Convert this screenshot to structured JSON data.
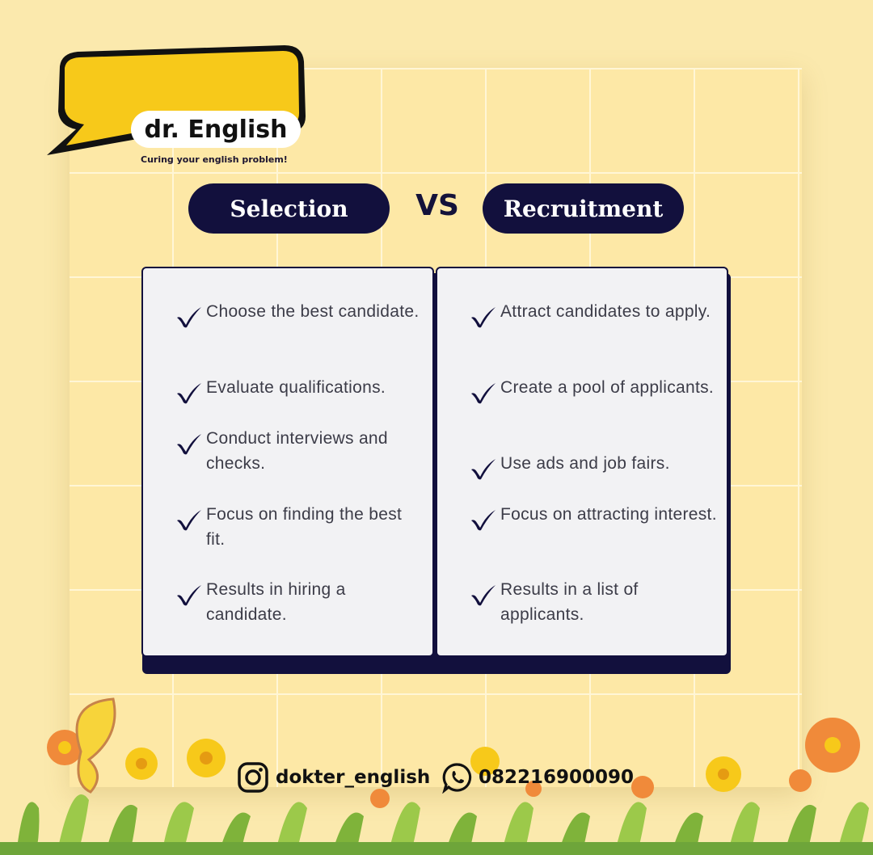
{
  "brand": {
    "name": "dr. English",
    "tagline": "Curing your english problem!",
    "bubble_color": "#f7c91a",
    "outline_color": "#111111"
  },
  "header": {
    "left_title": "Selection",
    "vs": "VS",
    "right_title": "Recruitment",
    "pill_color": "#12103d"
  },
  "selection": {
    "items": [
      "Choose the best candidate.",
      "Evaluate qualifications.",
      "Conduct interviews and checks.",
      "Focus on finding the best fit.",
      "Results in hiring a candidate."
    ]
  },
  "recruitment": {
    "items": [
      "Attract candidates to apply.",
      "Create a pool of applicants.",
      "Use ads and job fairs.",
      "Focus on attracting interest.",
      "Results in a list of applicants."
    ]
  },
  "footer": {
    "instagram_icon": "instagram-icon",
    "instagram": "dokter_english",
    "whatsapp_icon": "whatsapp-icon",
    "phone": "082216900090"
  },
  "colors": {
    "background": "#fbe9ad",
    "grid_line": "#fff6d6",
    "card": "#f2f2f4",
    "check": "#12103d",
    "text": "#3c3c48"
  }
}
